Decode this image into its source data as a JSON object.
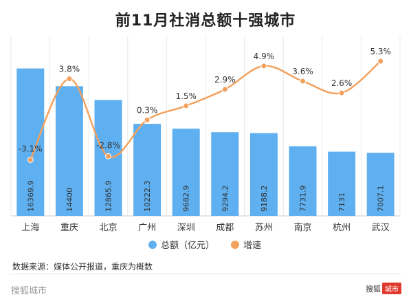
{
  "title": "前11月社消总额十强城市",
  "source": "数据来源：媒体公开报道，重庆为概数",
  "footer": {
    "left": "搜狐城市",
    "brand": "搜狐",
    "badge": "城市"
  },
  "colors": {
    "bar": "#5fb0f1",
    "line": "#f2a15e",
    "grid": "#e8e8e8"
  },
  "chart_data": {
    "type": "bar",
    "categories": [
      "上海",
      "重庆",
      "北京",
      "广州",
      "深圳",
      "成都",
      "苏州",
      "南京",
      "杭州",
      "武汉"
    ],
    "series": [
      {
        "name": "总额（亿元）",
        "type": "bar",
        "values": [
          16369.9,
          14400,
          12865.9,
          10222.3,
          9682.9,
          9294.2,
          9188.2,
          7731.9,
          7131,
          7007.1
        ],
        "labels": [
          "16369.9",
          "14400",
          "12865.9",
          "10222.3",
          "9682.9",
          "9294.2",
          "9188.2",
          "7731.9",
          "7131",
          "7007.1"
        ]
      },
      {
        "name": "增速",
        "type": "line",
        "values": [
          -3.1,
          3.8,
          -2.8,
          0.3,
          1.5,
          2.9,
          4.9,
          3.6,
          2.6,
          5.3
        ],
        "labels": [
          "-3.1%",
          "3.8%",
          "-2.8%",
          "0.3%",
          "1.5%",
          "2.9%",
          "4.9%",
          "3.6%",
          "2.6%",
          "5.3%"
        ]
      }
    ],
    "bar_ylim": [
      0,
      20000
    ],
    "line_ylim": [
      -6,
      7
    ],
    "legend": "bottom",
    "grid": true
  }
}
